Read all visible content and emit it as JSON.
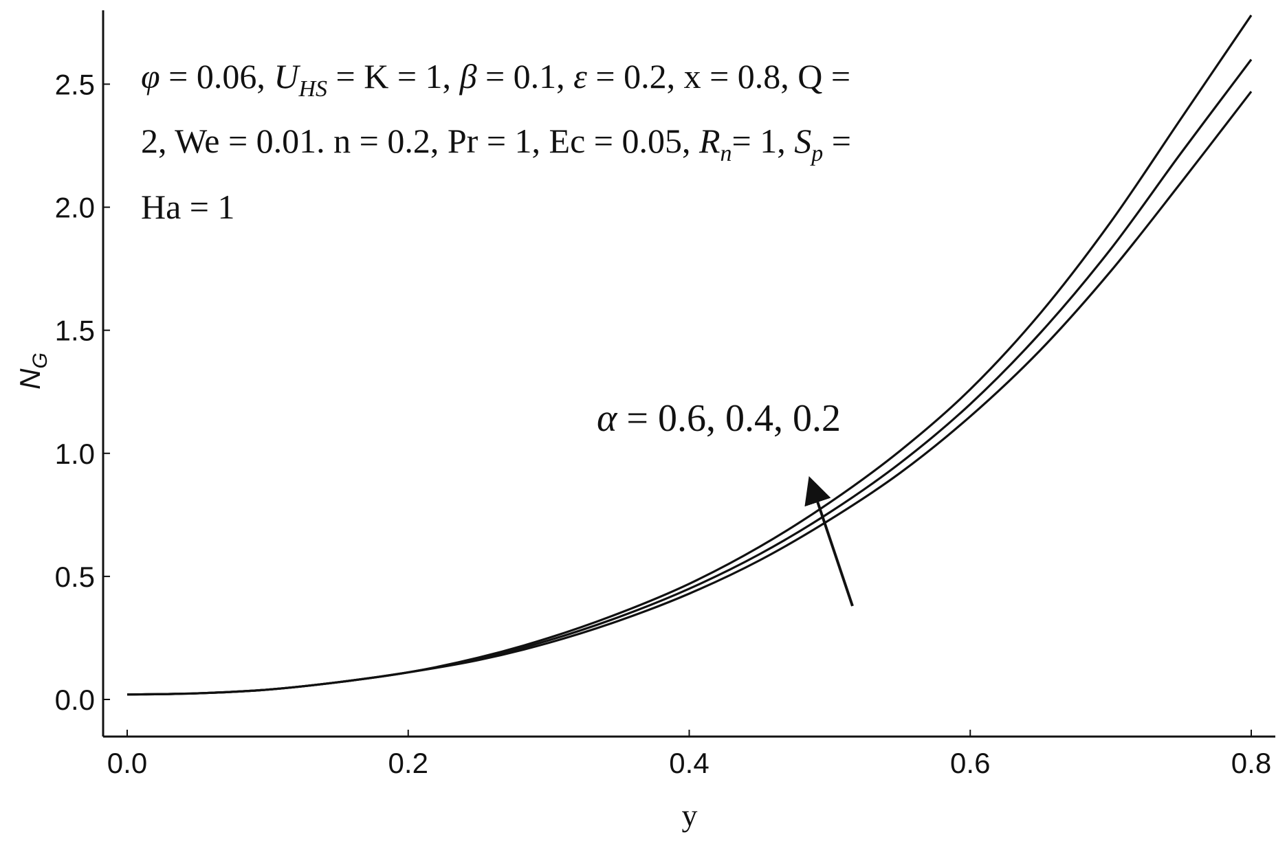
{
  "chart_data": {
    "type": "line",
    "xlabel": "y",
    "ylabel": {
      "main": "N",
      "sub": "G"
    },
    "xlim": [
      0.0,
      0.8
    ],
    "ylim": [
      0.0,
      2.8
    ],
    "x_ticks": [
      "0.0",
      "0.2",
      "0.4",
      "0.6",
      "0.8"
    ],
    "y_ticks": [
      "0.0",
      "0.5",
      "1.0",
      "1.5",
      "2.0",
      "2.5"
    ],
    "grid": false,
    "x": [
      0.0,
      0.05,
      0.1,
      0.15,
      0.2,
      0.25,
      0.3,
      0.35,
      0.4,
      0.45,
      0.5,
      0.55,
      0.6,
      0.65,
      0.7,
      0.75,
      0.8
    ],
    "series": [
      {
        "values": [
          0.02,
          0.025,
          0.04,
          0.07,
          0.11,
          0.17,
          0.25,
          0.35,
          0.47,
          0.62,
          0.8,
          1.01,
          1.26,
          1.57,
          1.94,
          2.36,
          2.78
        ]
      },
      {
        "values": [
          0.02,
          0.025,
          0.04,
          0.07,
          0.11,
          0.165,
          0.24,
          0.335,
          0.45,
          0.59,
          0.76,
          0.96,
          1.2,
          1.49,
          1.83,
          2.22,
          2.6
        ]
      },
      {
        "values": [
          0.02,
          0.025,
          0.04,
          0.07,
          0.11,
          0.16,
          0.23,
          0.32,
          0.43,
          0.565,
          0.73,
          0.92,
          1.15,
          1.42,
          1.74,
          2.1,
          2.47
        ]
      }
    ],
    "parameters": {
      "line1": [
        {
          "t": "φ",
          "s": "it"
        },
        {
          "t": " = 0.06, "
        },
        {
          "t": "U",
          "s": "it"
        },
        {
          "t": "HS",
          "s": "sub"
        },
        {
          "t": " = K = 1, "
        },
        {
          "t": "β",
          "s": "it"
        },
        {
          "t": " = 0.1, "
        },
        {
          "t": "ε",
          "s": "it"
        },
        {
          "t": " = 0.2, x = 0.8, Q ="
        }
      ],
      "line2": [
        {
          "t": "2, We = 0.01. n = 0.2, Pr = 1, Ec = 0.05, "
        },
        {
          "t": "R",
          "s": "it"
        },
        {
          "t": "n",
          "s": "sub"
        },
        {
          "t": "= 1, "
        },
        {
          "t": "S",
          "s": "it"
        },
        {
          "t": "p",
          "s": "sub"
        },
        {
          "t": " ="
        }
      ],
      "line3": [
        {
          "t": "Ha = 1"
        }
      ]
    },
    "annotation": {
      "symbol": "α",
      "text": " = 0.6, 0.4, 0.2"
    }
  }
}
